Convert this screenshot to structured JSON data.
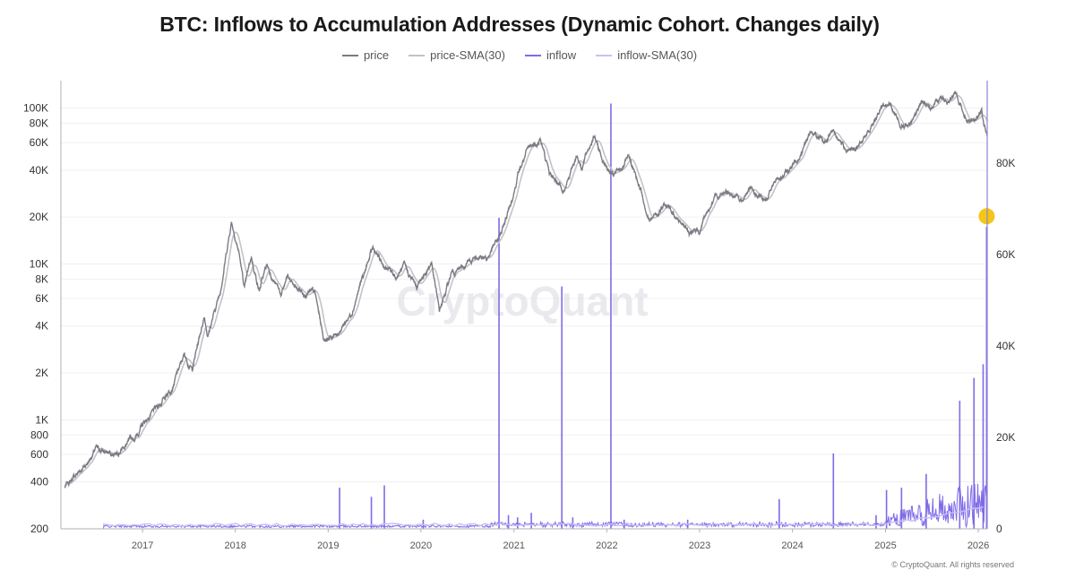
{
  "title": "BTC: Inflows to Accumulation Addresses (Dynamic Cohort. Changes daily)",
  "watermark": "CryptoQuant",
  "copyright": "© CryptoQuant. All rights reserved",
  "colors": {
    "price": "#7b7b84",
    "price_sma": "#c2c2c8",
    "inflow": "#7f6be8",
    "inflow_sma": "#c9bff5",
    "highlight": "#f5c518",
    "axis": "#b0b0b8",
    "grid": "#f0f0f2",
    "right_axis": "#8b83d9"
  },
  "chart_data": {
    "type": "line",
    "title": "BTC: Inflows to Accumulation Addresses (Dynamic Cohort. Changes daily)",
    "legend": {
      "position": "top-center",
      "entries": [
        "price",
        "price-SMA(30)",
        "inflow",
        "inflow-SMA(30)"
      ]
    },
    "x_axis": {
      "type": "date",
      "range": [
        "2016-02-15",
        "2026-02-05"
      ],
      "ticks": [
        "2017",
        "2018",
        "2019",
        "2020",
        "2021",
        "2022",
        "2023",
        "2024",
        "2025",
        "2026"
      ]
    },
    "y_left": {
      "scale": "log",
      "range": [
        200,
        150000
      ],
      "ticks": [
        {
          "v": 100000,
          "label": "100K"
        },
        {
          "v": 80000,
          "label": "80K"
        },
        {
          "v": 60000,
          "label": "60K"
        },
        {
          "v": 40000,
          "label": "40K"
        },
        {
          "v": 20000,
          "label": "20K"
        },
        {
          "v": 10000,
          "label": "10K"
        },
        {
          "v": 8000,
          "label": "8K"
        },
        {
          "v": 6000,
          "label": "6K"
        },
        {
          "v": 4000,
          "label": "4K"
        },
        {
          "v": 2000,
          "label": "2K"
        },
        {
          "v": 1000,
          "label": "1K"
        },
        {
          "v": 800,
          "label": "800"
        },
        {
          "v": 600,
          "label": "600"
        },
        {
          "v": 400,
          "label": "400"
        },
        {
          "v": 200,
          "label": "200"
        }
      ]
    },
    "y_right": {
      "scale": "linear",
      "range": [
        0,
        98000
      ],
      "ticks": [
        {
          "v": 0,
          "label": "0"
        },
        {
          "v": 20000,
          "label": "20K"
        },
        {
          "v": 40000,
          "label": "40K"
        },
        {
          "v": 60000,
          "label": "60K"
        },
        {
          "v": 80000,
          "label": "80K"
        }
      ]
    },
    "grid": true,
    "series": [
      {
        "name": "price",
        "axis": "left",
        "points": [
          [
            "2016-03-01",
            370
          ],
          [
            "2016-06-01",
            540
          ],
          [
            "2016-07-01",
            650
          ],
          [
            "2016-09-01",
            600
          ],
          [
            "2016-12-01",
            760
          ],
          [
            "2017-01-05",
            950
          ],
          [
            "2017-03-01",
            1200
          ],
          [
            "2017-05-01",
            1700
          ],
          [
            "2017-06-15",
            2600
          ],
          [
            "2017-07-15",
            2100
          ],
          [
            "2017-09-01",
            4700
          ],
          [
            "2017-09-15",
            3500
          ],
          [
            "2017-11-01",
            6500
          ],
          [
            "2017-12-17",
            19000
          ],
          [
            "2018-01-15",
            12000
          ],
          [
            "2018-02-06",
            6900
          ],
          [
            "2018-03-05",
            11000
          ],
          [
            "2018-04-05",
            6800
          ],
          [
            "2018-05-05",
            9800
          ],
          [
            "2018-07-01",
            6300
          ],
          [
            "2018-07-25",
            8200
          ],
          [
            "2018-09-01",
            6900
          ],
          [
            "2018-11-10",
            6400
          ],
          [
            "2018-12-15",
            3300
          ],
          [
            "2019-02-01",
            3500
          ],
          [
            "2019-04-01",
            4800
          ],
          [
            "2019-05-15",
            8000
          ],
          [
            "2019-06-26",
            12500
          ],
          [
            "2019-08-01",
            10000
          ],
          [
            "2019-09-25",
            8200
          ],
          [
            "2019-10-26",
            9500
          ],
          [
            "2019-12-15",
            7100
          ],
          [
            "2020-02-12",
            10300
          ],
          [
            "2020-03-13",
            4900
          ],
          [
            "2020-05-01",
            8800
          ],
          [
            "2020-06-15",
            9400
          ],
          [
            "2020-08-15",
            11800
          ],
          [
            "2020-09-15",
            10700
          ],
          [
            "2020-11-15",
            16000
          ],
          [
            "2020-12-31",
            29000
          ],
          [
            "2021-01-15",
            37000
          ],
          [
            "2021-02-20",
            52000
          ],
          [
            "2021-04-14",
            63500
          ],
          [
            "2021-05-20",
            38000
          ],
          [
            "2021-07-20",
            30000
          ],
          [
            "2021-09-05",
            51000
          ],
          [
            "2021-09-25",
            42000
          ],
          [
            "2021-11-10",
            67500
          ],
          [
            "2021-12-15",
            47000
          ],
          [
            "2022-01-25",
            36000
          ],
          [
            "2022-03-30",
            47000
          ],
          [
            "2022-05-15",
            30000
          ],
          [
            "2022-06-18",
            19000
          ],
          [
            "2022-08-15",
            24000
          ],
          [
            "2022-10-15",
            19200
          ],
          [
            "2022-11-21",
            15800
          ],
          [
            "2022-12-31",
            16500
          ],
          [
            "2023-02-15",
            24000
          ],
          [
            "2023-04-14",
            30500
          ],
          [
            "2023-06-15",
            25000
          ],
          [
            "2023-07-15",
            30000
          ],
          [
            "2023-09-11",
            25000
          ],
          [
            "2023-11-01",
            35000
          ],
          [
            "2023-12-31",
            42500
          ],
          [
            "2024-02-28",
            62000
          ],
          [
            "2024-03-14",
            73000
          ],
          [
            "2024-05-01",
            58000
          ],
          [
            "2024-06-07",
            71000
          ],
          [
            "2024-08-05",
            54000
          ],
          [
            "2024-09-06",
            53000
          ],
          [
            "2024-10-29",
            72000
          ],
          [
            "2024-12-17",
            106000
          ],
          [
            "2025-01-20",
            105000
          ],
          [
            "2025-02-28",
            80000
          ],
          [
            "2025-04-08",
            76000
          ],
          [
            "2025-05-22",
            111000
          ],
          [
            "2025-06-22",
            100000
          ],
          [
            "2025-08-14",
            123000
          ],
          [
            "2025-09-01",
            108000
          ],
          [
            "2025-10-06",
            124000
          ],
          [
            "2025-11-21",
            83000
          ],
          [
            "2025-12-15",
            88000
          ],
          [
            "2026-01-14",
            96000
          ],
          [
            "2026-02-05",
            63000
          ]
        ]
      },
      {
        "name": "price-SMA(30)",
        "axis": "left",
        "smoothing_days": 30
      },
      {
        "name": "inflow",
        "axis": "right",
        "spikes": [
          [
            "2019-02-15",
            9000
          ],
          [
            "2019-06-20",
            7000
          ],
          [
            "2019-08-10",
            9500
          ],
          [
            "2020-01-10",
            2000
          ],
          [
            "2020-11-03",
            68000
          ],
          [
            "2020-12-10",
            3000
          ],
          [
            "2021-01-15",
            2500
          ],
          [
            "2021-03-10",
            3500
          ],
          [
            "2021-07-08",
            53000
          ],
          [
            "2021-08-20",
            2500
          ],
          [
            "2022-01-17",
            93000
          ],
          [
            "2022-03-10",
            2000
          ],
          [
            "2022-11-15",
            2000
          ],
          [
            "2023-11-10",
            6500
          ],
          [
            "2024-06-10",
            16500
          ],
          [
            "2024-11-25",
            3000
          ],
          [
            "2025-01-05",
            8500
          ],
          [
            "2025-03-05",
            9000
          ],
          [
            "2025-06-10",
            12000
          ],
          [
            "2025-10-20",
            28000
          ],
          [
            "2025-12-15",
            33000
          ],
          [
            "2026-01-20",
            36000
          ]
        ],
        "highlight": {
          "date": "2026-02-03",
          "value": 66000
        }
      },
      {
        "name": "inflow-SMA(30)",
        "axis": "right",
        "smoothing_days": 30
      }
    ]
  }
}
